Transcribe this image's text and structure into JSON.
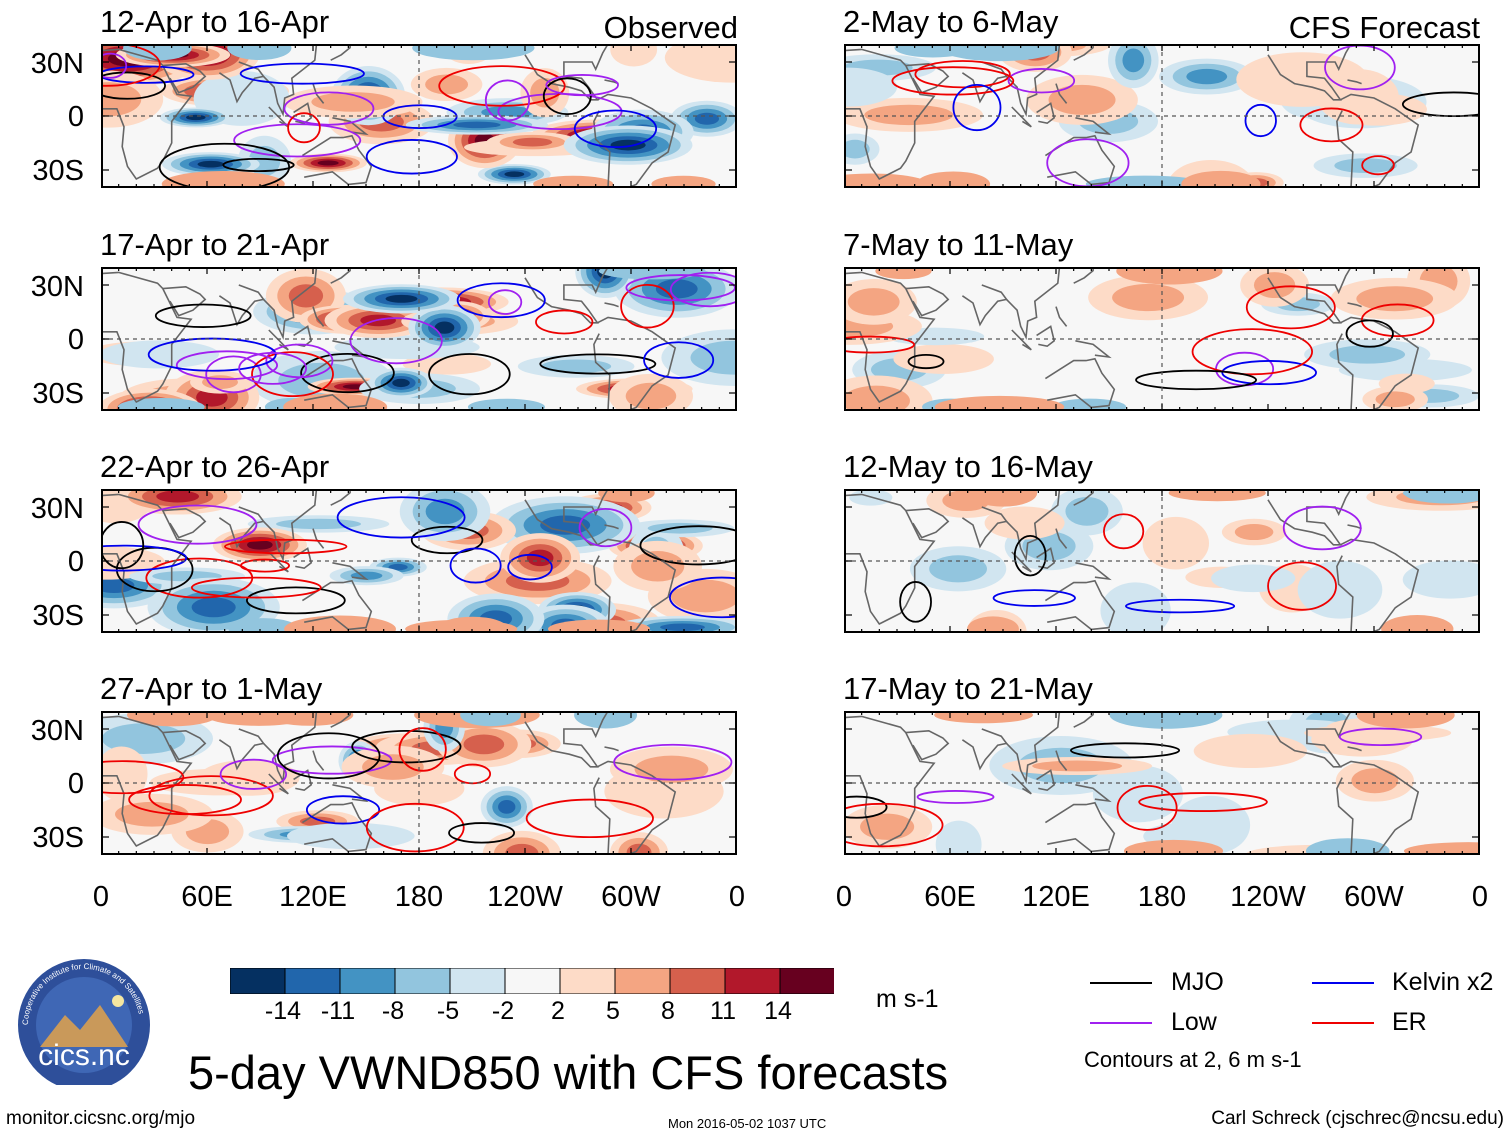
{
  "chart_data": {
    "type": "heatmap",
    "variable": "VWND850",
    "title": "5-day VWND850 with CFS forecasts",
    "units": "m s-1",
    "x_ticks": [
      "0",
      "60E",
      "120E",
      "180",
      "120W",
      "60W",
      "0"
    ],
    "y_ticks": [
      "30N",
      "0",
      "30S"
    ],
    "colorbar_levels": [
      "-14",
      "-11",
      "-8",
      "-5",
      "-2",
      "2",
      "5",
      "8",
      "11",
      "14"
    ],
    "colorbar_colors": [
      "#053061",
      "#2166ac",
      "#4393c3",
      "#92c5de",
      "#d1e5f0",
      "#f7f7f7",
      "#fddbc7",
      "#f4a582",
      "#d6604d",
      "#b2182b",
      "#67001f"
    ],
    "observed_label": "Observed",
    "forecast_label": "CFS Forecast",
    "observed_panels": [
      {
        "title": "12-Apr to 16-Apr"
      },
      {
        "title": "17-Apr to 21-Apr"
      },
      {
        "title": "22-Apr to 26-Apr"
      },
      {
        "title": "27-Apr to 1-May"
      }
    ],
    "forecast_panels": [
      {
        "title": "2-May to 6-May"
      },
      {
        "title": "7-May to 11-May"
      },
      {
        "title": "12-May to 16-May"
      },
      {
        "title": "17-May to 21-May"
      }
    ],
    "legend": [
      {
        "name": "MJO",
        "color": "#000000"
      },
      {
        "name": "Kelvin x2",
        "color": "#0000ee"
      },
      {
        "name": "Low",
        "color": "#a020f0"
      },
      {
        "name": "ER",
        "color": "#ee0000"
      }
    ],
    "contour_note": "Contours at 2, 6 m s-1"
  },
  "logo": {
    "text": "cics.nc",
    "ring_text": "Cooperative Institute for Climate and Satellites"
  },
  "footer": {
    "left": "monitor.cicsnc.org/mjo",
    "middle": "Mon 2016-05-02 1037 UTC",
    "right": "Carl Schreck (cjschrec@ncsu.edu)"
  }
}
